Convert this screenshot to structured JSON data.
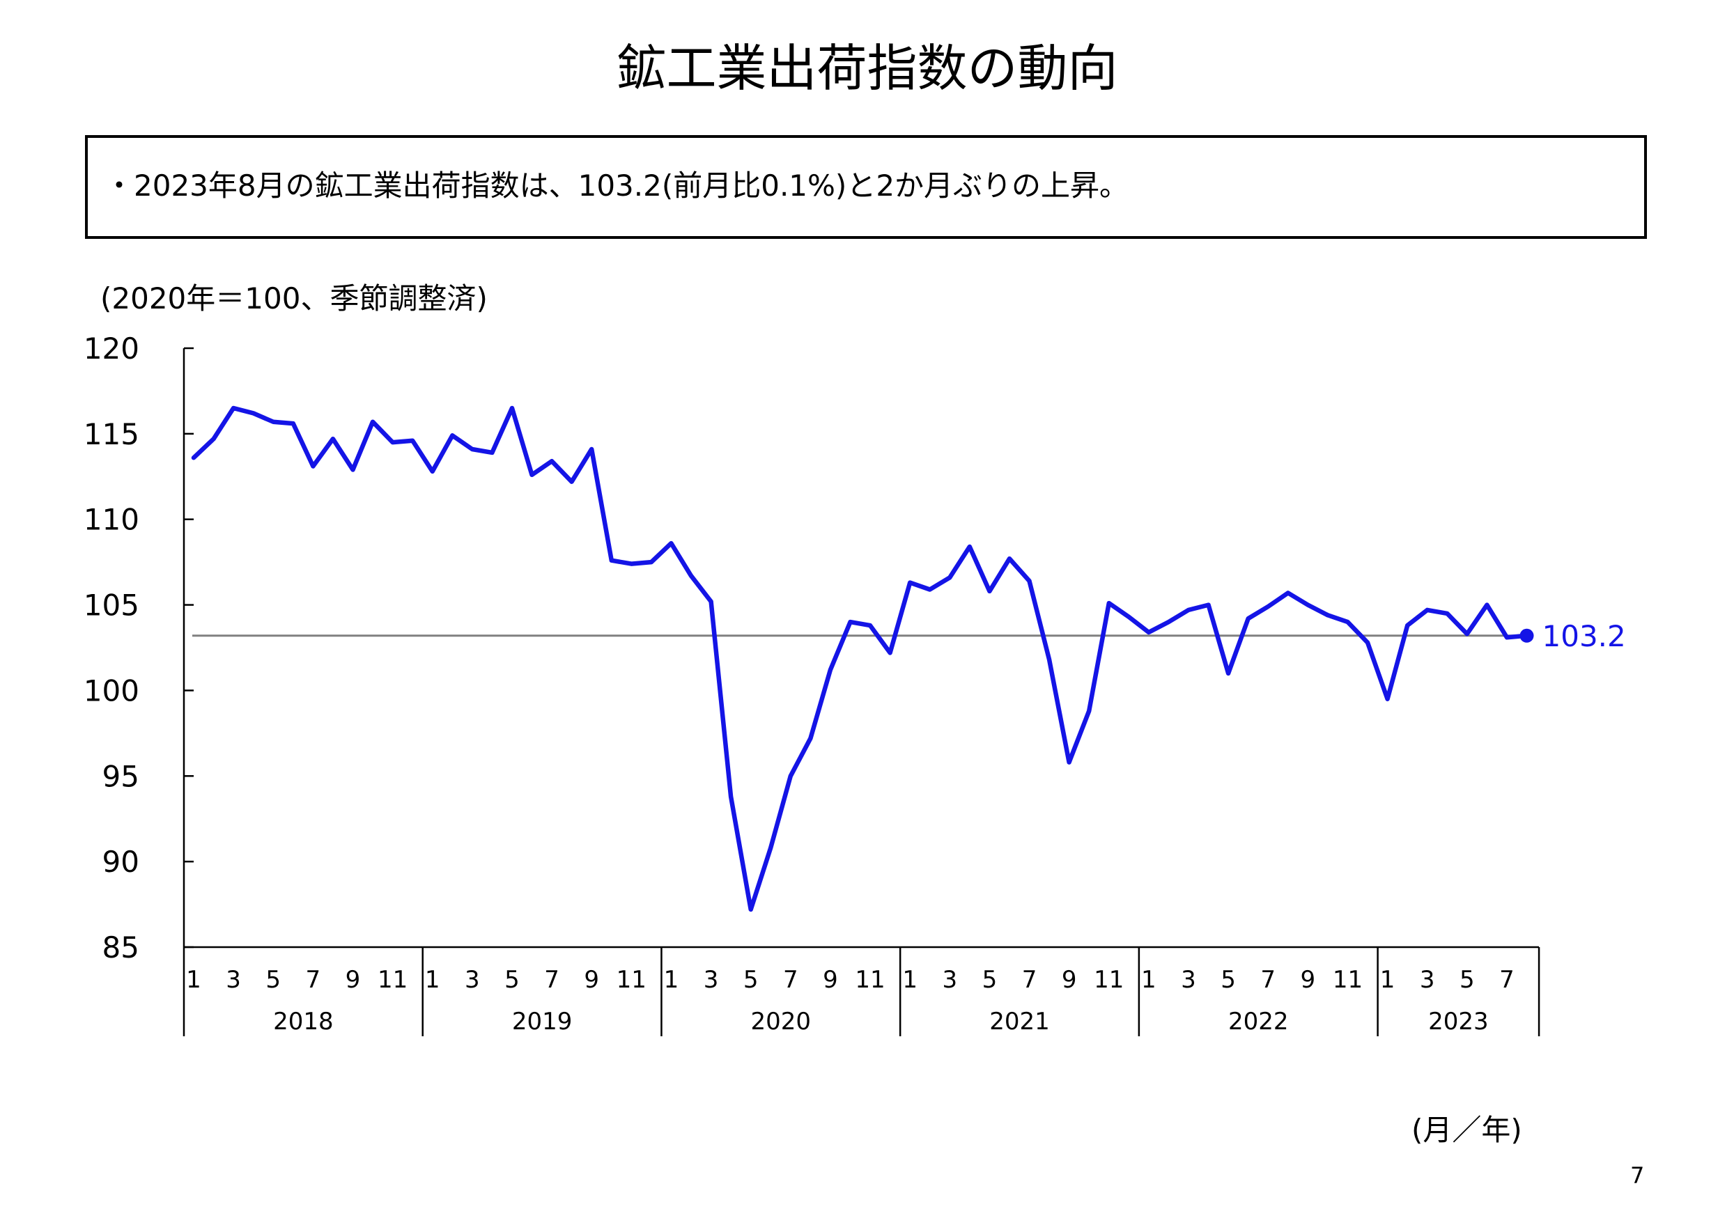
{
  "title": "鉱工業出荷指数の動向",
  "summary": "・2023年8月の鉱工業出荷指数は、103.2(前月比0.1%)と2か月ぶりの上昇。",
  "unit_note": "(2020年＝100、季節調整済)",
  "x_unit": "(月／年)",
  "page_number": "7",
  "colors": {
    "series": "#1414e6",
    "reference": "#808080",
    "axis": "#000000"
  },
  "chart_data": {
    "type": "line",
    "title": "",
    "ylabel": "",
    "ylim": [
      85,
      120
    ],
    "yticks": [
      120,
      115,
      110,
      105,
      100,
      95,
      90,
      85
    ],
    "grid": false,
    "legend": "none",
    "month_tick_labels": [
      "1",
      "3",
      "5",
      "7",
      "9",
      "11"
    ],
    "years": [
      {
        "label": "2018",
        "months": 12
      },
      {
        "label": "2019",
        "months": 12
      },
      {
        "label": "2020",
        "months": 12
      },
      {
        "label": "2021",
        "months": 12
      },
      {
        "label": "2022",
        "months": 12
      },
      {
        "label": "2023",
        "months": 8
      }
    ],
    "reference_line": 103.2,
    "last_value_label": "103.2",
    "series": [
      {
        "values": [
          113.6,
          114.7,
          116.5,
          116.2,
          115.7,
          115.6,
          113.1,
          114.7,
          112.9,
          115.7,
          114.5,
          114.6,
          112.8,
          114.9,
          114.1,
          113.9,
          116.5,
          112.6,
          113.4,
          112.2,
          114.1,
          107.6,
          107.4,
          107.5,
          108.6,
          106.7,
          105.2,
          93.8,
          87.2,
          90.8,
          95.0,
          97.2,
          101.2,
          104.0,
          103.8,
          102.2,
          106.3,
          105.9,
          106.6,
          108.4,
          105.8,
          107.7,
          106.4,
          101.8,
          95.8,
          98.8,
          105.1,
          104.3,
          103.4,
          104.0,
          104.7,
          105.0,
          101.0,
          104.2,
          104.9,
          105.7,
          105.0,
          104.4,
          104.0,
          102.8,
          99.5,
          103.8,
          104.7,
          104.5,
          103.3,
          105.0,
          103.1,
          103.2
        ]
      }
    ]
  }
}
